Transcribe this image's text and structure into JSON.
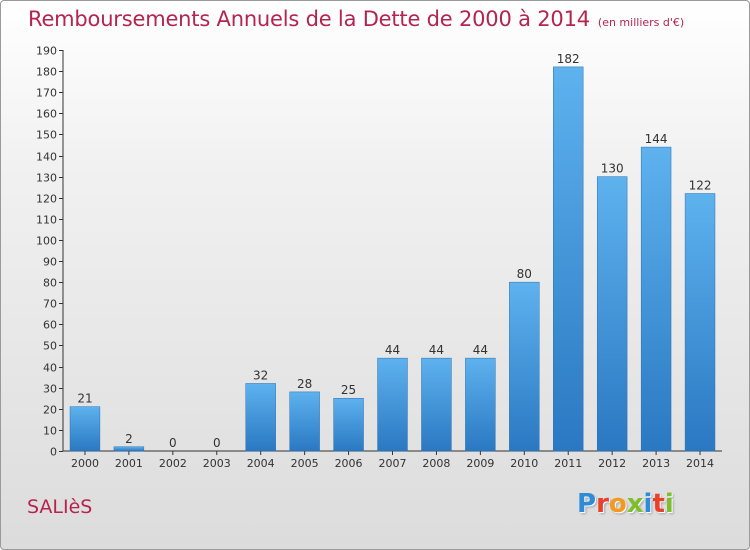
{
  "chart_data": {
    "type": "bar",
    "title": "Remboursements Annuels de la Dette de 2000 à 2014",
    "subtitle": "(en milliers d'€)",
    "xlabel": "",
    "ylabel": "",
    "categories": [
      "2000",
      "2001",
      "2002",
      "2003",
      "2004",
      "2005",
      "2006",
      "2007",
      "2008",
      "2009",
      "2010",
      "2011",
      "2012",
      "2013",
      "2014"
    ],
    "values": [
      21,
      2,
      0,
      0,
      32,
      28,
      25,
      44,
      44,
      44,
      80,
      182,
      130,
      144,
      122
    ],
    "ylim": [
      0,
      190
    ],
    "ytick_step": 10,
    "grid": false,
    "legend": "none",
    "bar_color": "#3a8fd6"
  },
  "footer": {
    "commune": "SALIèS",
    "logo_text": "Proxiti",
    "logo_colors": [
      "#2e8bd8",
      "#e8402a",
      "#f39a1e",
      "#7cbf2b",
      "#2e8bd8",
      "#e8402a",
      "#7cbf2b"
    ]
  },
  "colors": {
    "title": "#b5244e",
    "axis": "#333333"
  }
}
